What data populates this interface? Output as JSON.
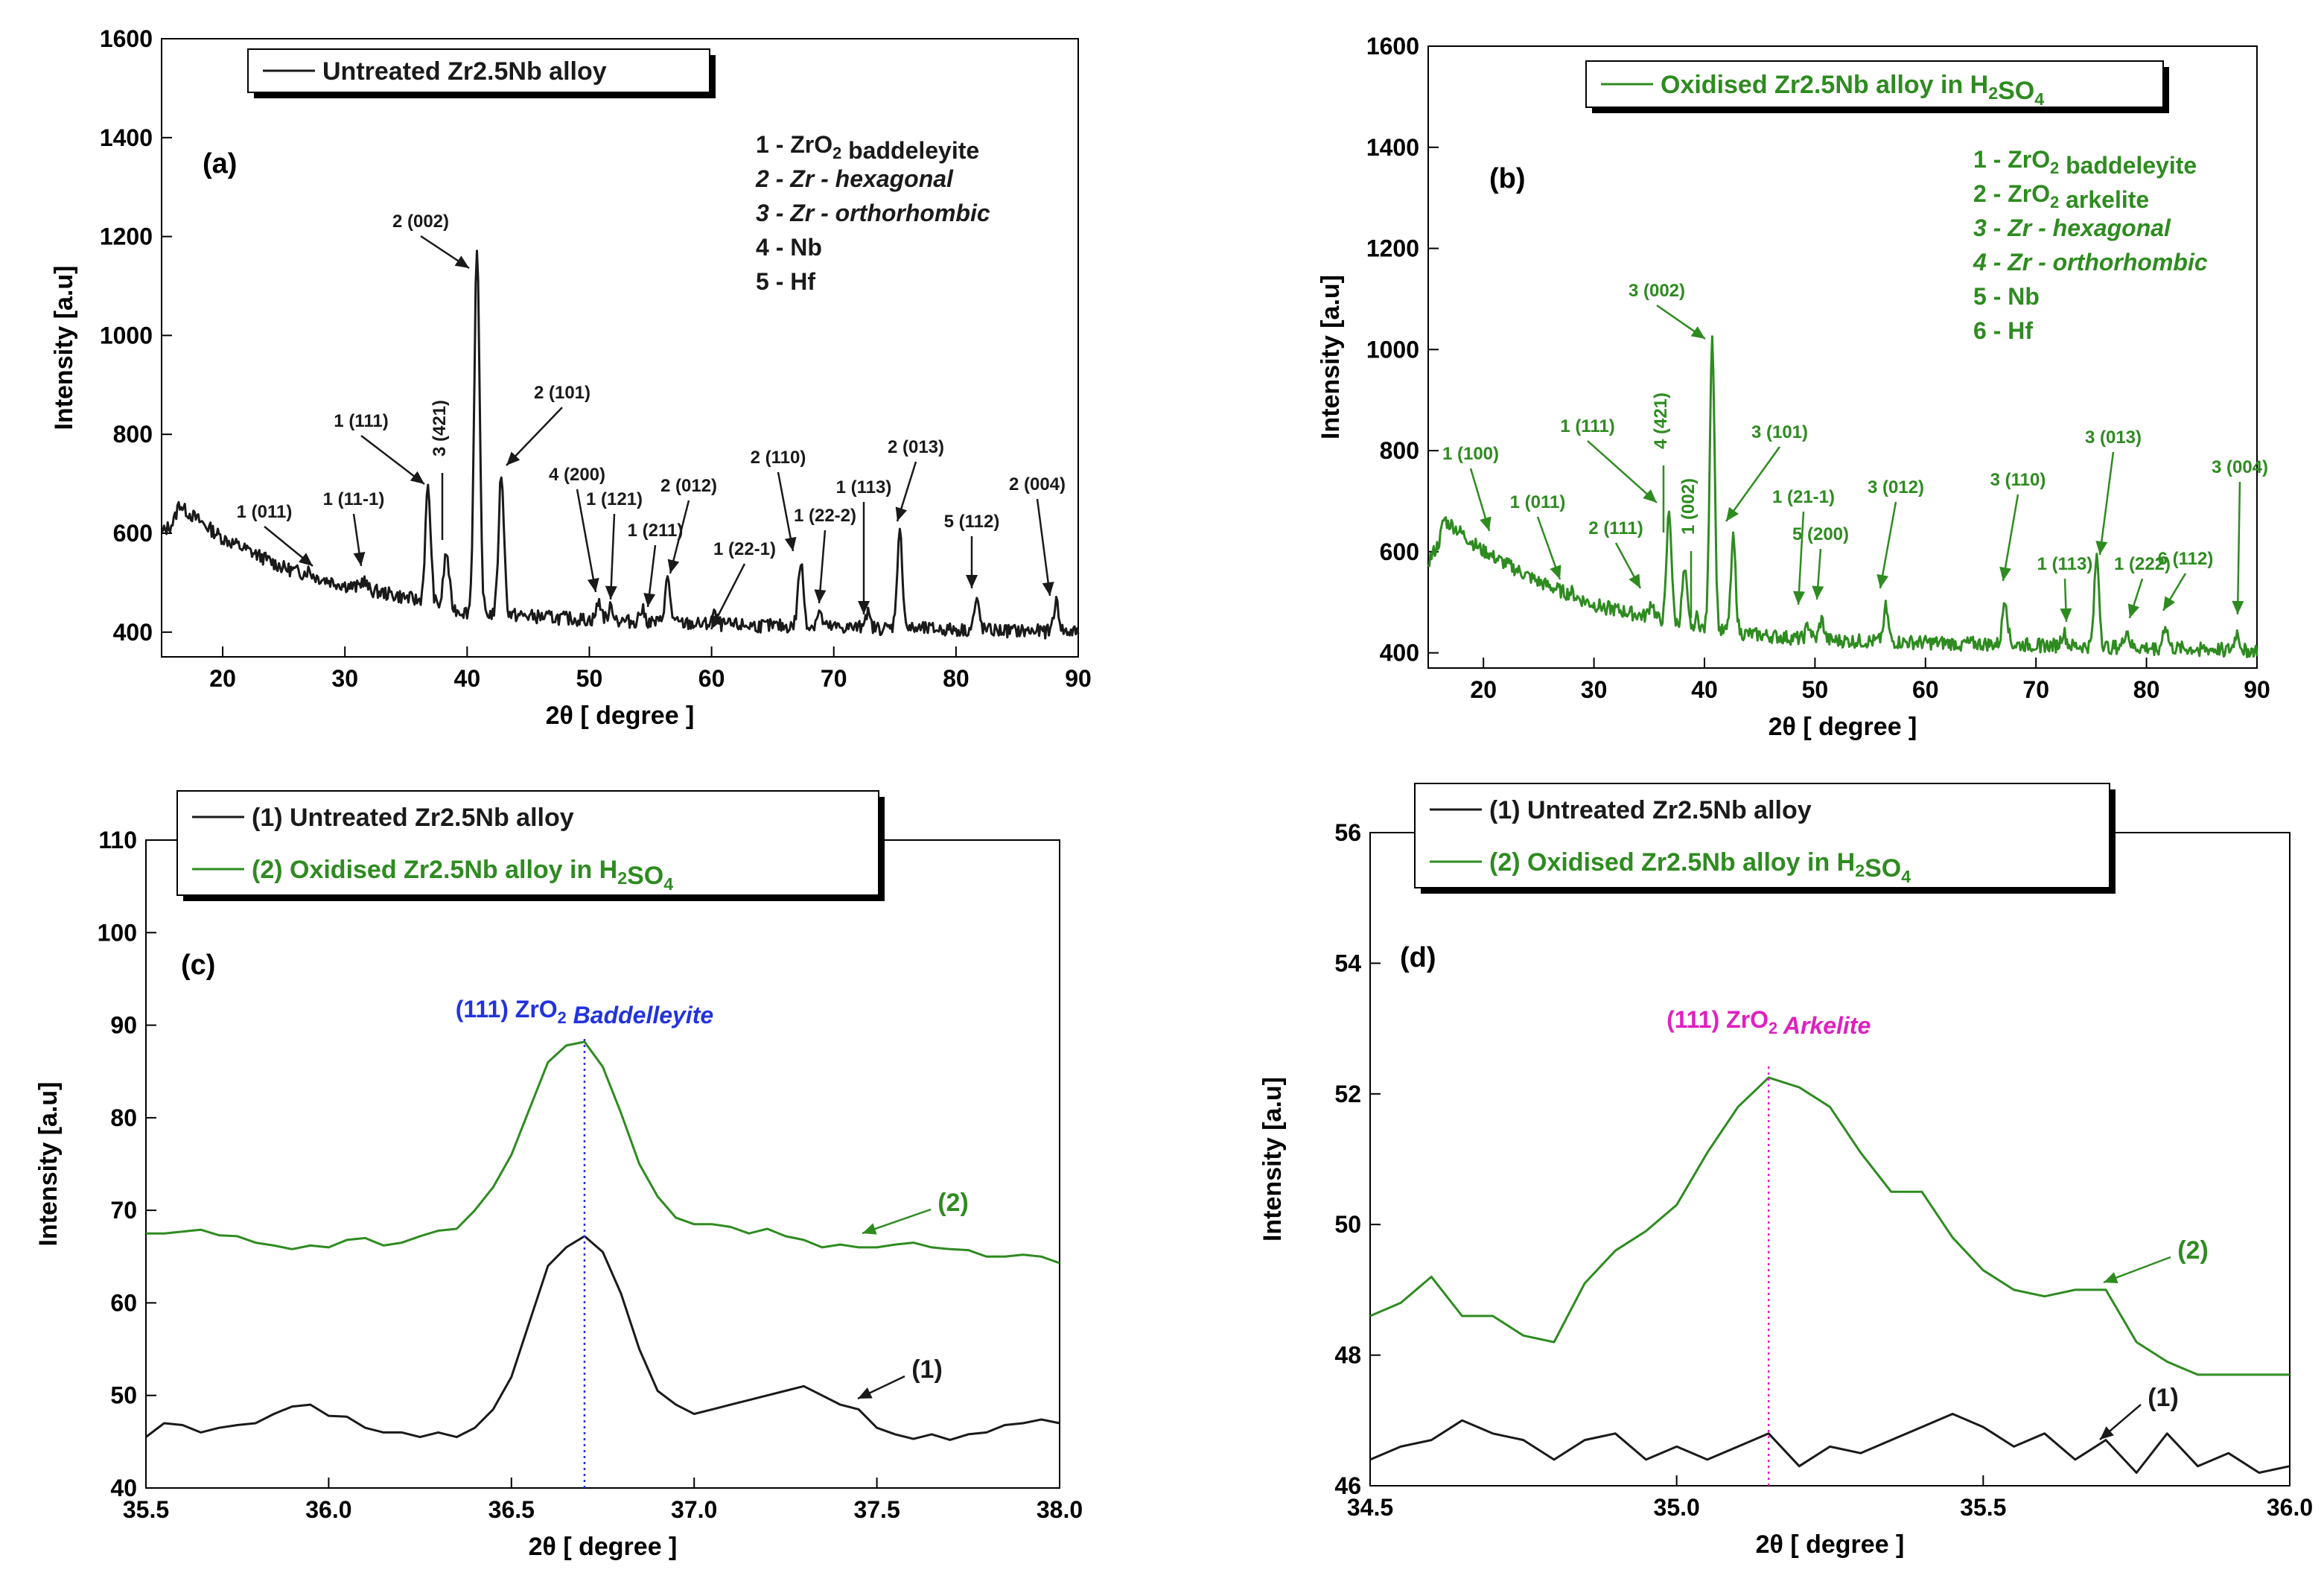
{
  "colors": {
    "untreated": "#1a1a1a",
    "oxidised": "#2e8b20",
    "baddeleyite_marker": "#2233dd",
    "arkelite_marker": "#e020c0"
  },
  "panels": [
    {
      "label": "(a)",
      "legend": [
        {
          "text": "Untreated Zr2.5Nb alloy",
          "color": "#1a1a1a"
        }
      ],
      "key": [
        "1 - ZrO2 baddeleyite",
        "2 - Zr - hexagonal",
        "3 - Zr - orthorhombic",
        "4 - Nb",
        "5 - Hf"
      ],
      "peaks": [
        "2 (002)",
        "1 (111)",
        "3 (421)",
        "2 (101)",
        "1 (011)",
        "1 (11-1)",
        "4 (200)",
        "1 (121)",
        "1 (211)",
        "2 (012)",
        "1 (22-1)",
        "2 (110)",
        "1 (22-2)",
        "1 (113)",
        "2 (013)",
        "5 (112)",
        "2 (004)"
      ]
    },
    {
      "label": "(b)",
      "legend": [
        {
          "text": "Oxidised Zr2.5Nb alloy in H2SO4",
          "color": "#2e8b20"
        }
      ],
      "key": [
        "1 - ZrO2 baddeleyite",
        "2 - ZrO2 arkelite",
        "3 - Zr - hexagonal",
        "4 - Zr - orthorhombic",
        "5 - Nb",
        "6 - Hf"
      ],
      "peaks": [
        "3 (002)",
        "1 (100)",
        "1 (011)",
        "1 (111)",
        "2 (111)",
        "4 (421)",
        "1 (002)",
        "3 (101)",
        "1 (21-1)",
        "5 (200)",
        "3 (012)",
        "3 (110)",
        "1 (113)",
        "3 (013)",
        "1 (222)",
        "6 (112)",
        "3 (004)"
      ]
    },
    {
      "label": "(c)",
      "legend": [
        {
          "text": "(1) Untreated Zr2.5Nb alloy",
          "color": "#1a1a1a"
        },
        {
          "text": "(2) Oxidised Zr2.5Nb alloy in H2SO4",
          "color": "#2e8b20"
        }
      ],
      "marker": "(111) ZrO2 Baddelleyite",
      "curve_labels": [
        "(2)",
        "(1)"
      ]
    },
    {
      "label": "(d)",
      "legend": [
        {
          "text": "(1) Untreated Zr2.5Nb alloy",
          "color": "#1a1a1a"
        },
        {
          "text": "(2) Oxidised Zr2.5Nb alloy  in H2SO4",
          "color": "#2e8b20"
        }
      ],
      "marker": "(111) ZrO2 Arkelite",
      "curve_labels": [
        "(2)",
        "(1)"
      ]
    }
  ],
  "chart_data": [
    {
      "type": "line",
      "panel": "(a)",
      "title": "Untreated Zr2.5Nb alloy",
      "xlabel": "2θ [ degree ]",
      "ylabel": "Intensity [a.u]",
      "xlim": [
        15,
        90
      ],
      "ylim": [
        350,
        1600
      ],
      "xticks": [
        20,
        30,
        40,
        50,
        60,
        70,
        80,
        90
      ],
      "yticks": [
        400,
        600,
        800,
        1000,
        1200,
        1400,
        1600
      ],
      "baseline": [
        [
          15,
          600
        ],
        [
          17,
          645
        ],
        [
          20,
          590
        ],
        [
          25,
          530
        ],
        [
          30,
          495
        ],
        [
          35,
          470
        ],
        [
          40,
          440
        ],
        [
          50,
          425
        ],
        [
          60,
          415
        ],
        [
          70,
          410
        ],
        [
          80,
          405
        ],
        [
          90,
          400
        ]
      ],
      "peaks": [
        {
          "x": 16.5,
          "y": 660
        },
        {
          "x": 27,
          "y": 525
        },
        {
          "x": 31.5,
          "y": 505
        },
        {
          "x": 36.8,
          "y": 690,
          "label": "1 (111)"
        },
        {
          "x": 38.3,
          "y": 560,
          "label": "3 (421)"
        },
        {
          "x": 40.8,
          "y": 1170,
          "label": "2 (002)"
        },
        {
          "x": 42.8,
          "y": 720,
          "label": "2 (101)"
        },
        {
          "x": 50.8,
          "y": 460,
          "label": "4 (200)"
        },
        {
          "x": 51.8,
          "y": 450,
          "label": "1 (121)"
        },
        {
          "x": 54.3,
          "y": 445,
          "label": "1 (211)"
        },
        {
          "x": 56.4,
          "y": 505,
          "label": "2 (012)"
        },
        {
          "x": 60.2,
          "y": 435,
          "label": "1 (22-1)"
        },
        {
          "x": 67.3,
          "y": 540,
          "label": "2 (110)"
        },
        {
          "x": 68.8,
          "y": 440,
          "label": "1 (22-2)"
        },
        {
          "x": 72.7,
          "y": 440,
          "label": "1 (113)"
        },
        {
          "x": 75.4,
          "y": 600,
          "label": "2 (013)"
        },
        {
          "x": 81.7,
          "y": 460,
          "label": "5 (112)"
        },
        {
          "x": 88.2,
          "y": 460,
          "label": "2 (004)"
        }
      ]
    },
    {
      "type": "line",
      "panel": "(b)",
      "title": "Oxidised Zr2.5Nb alloy in H2SO4",
      "xlabel": "2θ [ degree ]",
      "ylabel": "Intensity [a.u]",
      "xlim": [
        15,
        90
      ],
      "ylim": [
        370,
        1600
      ],
      "xticks": [
        20,
        30,
        40,
        50,
        60,
        70,
        80,
        90
      ],
      "yticks": [
        400,
        600,
        800,
        1000,
        1200,
        1400,
        1600
      ],
      "baseline": [
        [
          15,
          580
        ],
        [
          17,
          655
        ],
        [
          20,
          600
        ],
        [
          25,
          540
        ],
        [
          30,
          495
        ],
        [
          35,
          470
        ],
        [
          40,
          445
        ],
        [
          50,
          425
        ],
        [
          60,
          420
        ],
        [
          70,
          415
        ],
        [
          80,
          410
        ],
        [
          90,
          405
        ]
      ],
      "peaks": [
        {
          "x": 16.5,
          "y": 665
        },
        {
          "x": 20.2,
          "y": 600,
          "label": "1 (100)"
        },
        {
          "x": 27.9,
          "y": 520,
          "label": "1 (011)"
        },
        {
          "x": 35.2,
          "y": 500,
          "label": "2 (111)"
        },
        {
          "x": 36.8,
          "y": 680,
          "label": "1 (111)"
        },
        {
          "x": 38.2,
          "y": 560,
          "label": "4 (421)"
        },
        {
          "x": 39.3,
          "y": 470,
          "label": "1 (002)"
        },
        {
          "x": 40.7,
          "y": 1025,
          "label": "3 (002)"
        },
        {
          "x": 42.6,
          "y": 625,
          "label": "3 (101)"
        },
        {
          "x": 49.4,
          "y": 455,
          "label": "1 (21-1)"
        },
        {
          "x": 50.6,
          "y": 465,
          "label": "5 (200)"
        },
        {
          "x": 56.4,
          "y": 490,
          "label": "3 (012)"
        },
        {
          "x": 67.2,
          "y": 510,
          "label": "3 (110)"
        },
        {
          "x": 72.5,
          "y": 440,
          "label": "1 (113)"
        },
        {
          "x": 75.5,
          "y": 590,
          "label": "3 (013)"
        },
        {
          "x": 78.2,
          "y": 445,
          "label": "1 (222)"
        },
        {
          "x": 81.7,
          "y": 455,
          "label": "6 (112)"
        },
        {
          "x": 88.2,
          "y": 440,
          "label": "3 (004)"
        }
      ]
    },
    {
      "type": "line",
      "panel": "(c)",
      "xlabel": "2θ [ degree ]",
      "ylabel": "Intensity [a.u]",
      "xlim": [
        35.5,
        38.0
      ],
      "ylim": [
        40,
        110
      ],
      "xticks": [
        35.5,
        36.0,
        36.5,
        37.0,
        37.5,
        38.0
      ],
      "yticks": [
        40,
        50,
        60,
        70,
        80,
        90,
        100,
        110
      ],
      "marker_x": 36.7,
      "series": [
        {
          "name": "(1) Untreated Zr2.5Nb alloy",
          "color": "#1a1a1a",
          "x": [
            35.5,
            35.55,
            35.6,
            35.65,
            35.7,
            35.75,
            35.8,
            35.85,
            35.9,
            35.95,
            36.0,
            36.05,
            36.1,
            36.15,
            36.2,
            36.25,
            36.3,
            36.35,
            36.4,
            36.45,
            36.5,
            36.55,
            36.6,
            36.65,
            36.7,
            36.75,
            36.8,
            36.85,
            36.9,
            36.95,
            37.0,
            37.05,
            37.1,
            37.15,
            37.2,
            37.25,
            37.3,
            37.35,
            37.4,
            37.45,
            37.5,
            37.55,
            37.6,
            37.65,
            37.7,
            37.75,
            37.8,
            37.85,
            37.9,
            37.95,
            38.0
          ],
          "y": [
            45.5,
            47,
            46.8,
            46,
            46.5,
            46.8,
            47,
            48,
            48.8,
            49,
            47.8,
            47.7,
            46.5,
            46,
            46,
            45.5,
            46,
            45.5,
            46.5,
            48.5,
            52,
            58,
            64,
            66,
            67.2,
            65.5,
            61,
            55,
            50.5,
            49,
            48,
            48.5,
            49,
            49.5,
            50,
            50.5,
            51,
            50,
            49,
            48.5,
            46.5,
            45.8,
            45.3,
            45.8,
            45.2,
            45.8,
            46,
            46.8,
            47,
            47.4,
            47
          ]
        },
        {
          "name": "(2) Oxidised Zr2.5Nb alloy in H2SO4",
          "color": "#2e8b20",
          "x": [
            35.5,
            35.55,
            35.6,
            35.65,
            35.7,
            35.75,
            35.8,
            35.85,
            35.9,
            35.95,
            36.0,
            36.05,
            36.1,
            36.15,
            36.2,
            36.25,
            36.3,
            36.35,
            36.4,
            36.45,
            36.5,
            36.55,
            36.6,
            36.65,
            36.7,
            36.75,
            36.8,
            36.85,
            36.9,
            36.95,
            37.0,
            37.05,
            37.1,
            37.15,
            37.2,
            37.25,
            37.3,
            37.35,
            37.4,
            37.45,
            37.5,
            37.55,
            37.6,
            37.65,
            37.7,
            37.75,
            37.8,
            37.85,
            37.9,
            37.95,
            38.0
          ],
          "y": [
            67.5,
            67.5,
            67.7,
            67.9,
            67.3,
            67.2,
            66.5,
            66.2,
            65.8,
            66.2,
            66,
            66.8,
            67,
            66.2,
            66.5,
            67.2,
            67.8,
            68,
            70,
            72.5,
            76,
            81,
            86,
            87.8,
            88.2,
            85.5,
            80.5,
            75,
            71.5,
            69.2,
            68.5,
            68.5,
            68.2,
            67.5,
            68,
            67.2,
            66.8,
            66,
            66.3,
            66,
            66,
            66.3,
            66.5,
            66,
            65.8,
            65.7,
            65,
            65,
            65.2,
            65,
            64.3
          ]
        }
      ]
    },
    {
      "type": "line",
      "panel": "(d)",
      "xlabel": "2θ [ degree ]",
      "ylabel": "Intensity [a.u]",
      "xlim": [
        34.5,
        36.0
      ],
      "ylim": [
        46,
        56
      ],
      "xticks": [
        34.5,
        35.0,
        35.5,
        36.0
      ],
      "yticks": [
        46,
        48,
        50,
        52,
        54,
        56
      ],
      "marker_x": 35.15,
      "series": [
        {
          "name": "(1) Untreated Zr2.5Nb alloy",
          "color": "#1a1a1a",
          "x": [
            34.5,
            34.55,
            34.6,
            34.65,
            34.7,
            34.75,
            34.8,
            34.85,
            34.9,
            34.95,
            35.0,
            35.05,
            35.1,
            35.15,
            35.2,
            35.25,
            35.3,
            35.35,
            35.4,
            35.45,
            35.5,
            35.55,
            35.6,
            35.65,
            35.7,
            35.75,
            35.8,
            35.85,
            35.9,
            35.95,
            36.0
          ],
          "y": [
            46.4,
            46.6,
            46.7,
            47,
            46.8,
            46.7,
            46.4,
            46.7,
            46.8,
            46.4,
            46.6,
            46.4,
            46.6,
            46.8,
            46.3,
            46.6,
            46.5,
            46.7,
            46.9,
            47.1,
            46.9,
            46.6,
            46.8,
            46.4,
            46.7,
            46.2,
            46.8,
            46.3,
            46.5,
            46.2,
            46.3
          ]
        },
        {
          "name": "(2) Oxidised Zr2.5Nb alloy in H2SO4",
          "color": "#2e8b20",
          "x": [
            34.5,
            34.55,
            34.6,
            34.65,
            34.7,
            34.75,
            34.8,
            34.85,
            34.9,
            34.95,
            35.0,
            35.05,
            35.1,
            35.15,
            35.2,
            35.25,
            35.3,
            35.35,
            35.4,
            35.45,
            35.5,
            35.55,
            35.6,
            35.65,
            35.7,
            35.75,
            35.8,
            35.85,
            35.9,
            35.95,
            36.0
          ],
          "y": [
            48.6,
            48.8,
            49.2,
            48.6,
            48.6,
            48.3,
            48.2,
            49.1,
            49.6,
            49.9,
            50.3,
            51.1,
            51.8,
            52.25,
            52.1,
            51.8,
            51.1,
            50.5,
            50.5,
            49.8,
            49.3,
            49,
            48.9,
            49,
            49,
            48.2,
            47.9,
            47.7,
            47.7,
            47.7,
            47.7
          ]
        }
      ]
    }
  ]
}
